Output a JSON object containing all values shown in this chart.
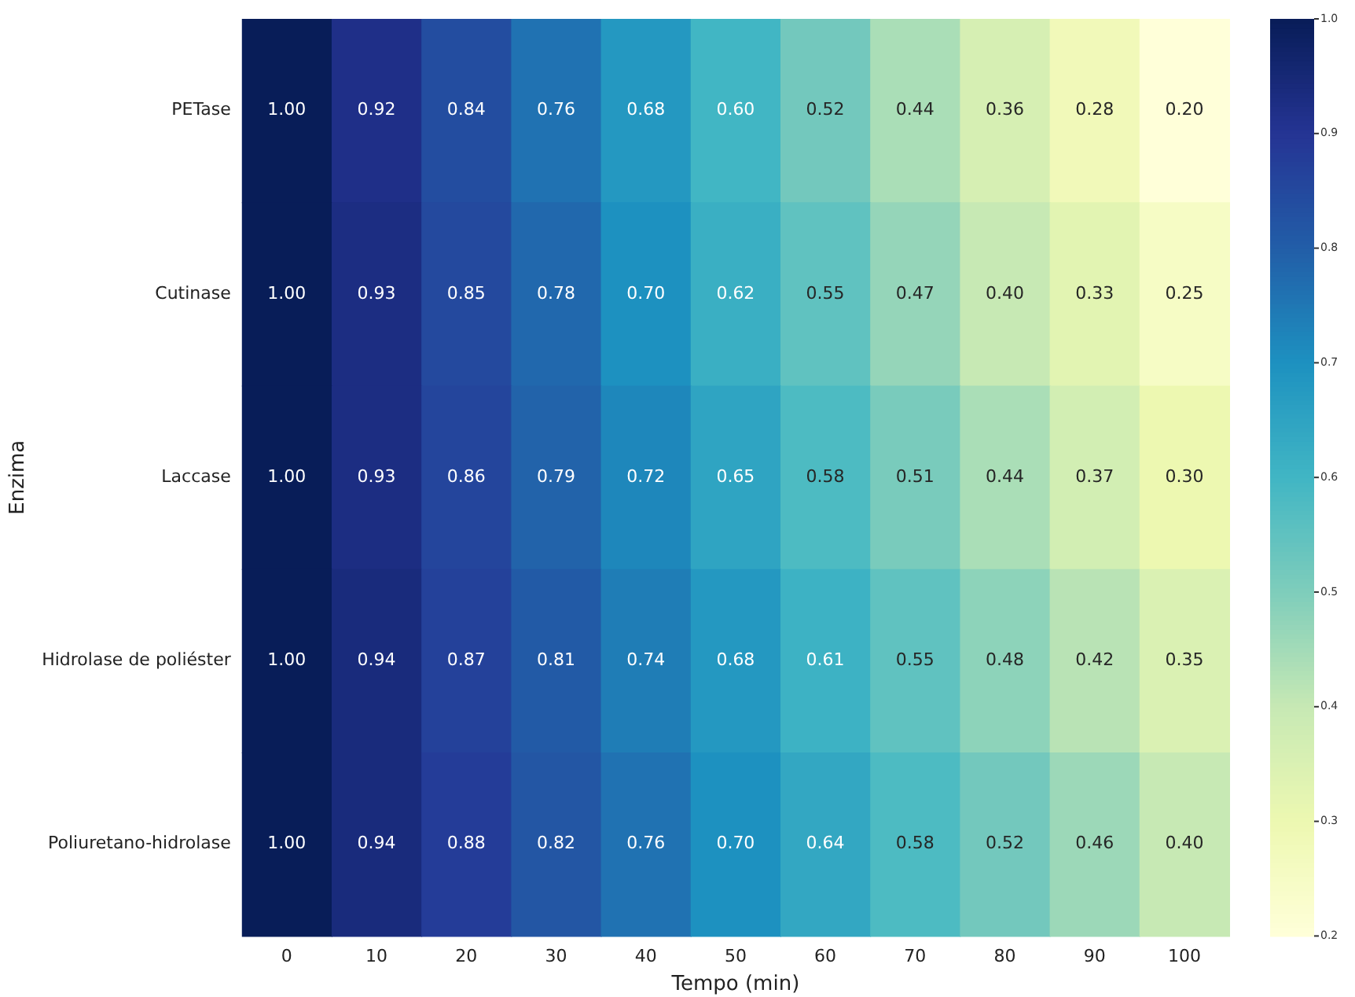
{
  "chart_data": {
    "type": "heatmap",
    "xlabel": "Tempo (min)",
    "ylabel": "Enzima",
    "categories": [
      "0",
      "10",
      "20",
      "30",
      "40",
      "50",
      "60",
      "70",
      "80",
      "90",
      "100"
    ],
    "y_categories": [
      "PETase",
      "Cutinase",
      "Laccase",
      "Hidrolase de poliéster",
      "Poliuretano-hidrolase"
    ],
    "cells": [
      [
        1.0,
        0.92,
        0.84,
        0.76,
        0.68,
        0.6,
        0.52,
        0.44,
        0.36,
        0.28,
        0.2
      ],
      [
        1.0,
        0.93,
        0.85,
        0.78,
        0.7,
        0.62,
        0.55,
        0.47,
        0.4,
        0.33,
        0.25
      ],
      [
        1.0,
        0.93,
        0.86,
        0.79,
        0.72,
        0.65,
        0.58,
        0.51,
        0.44,
        0.37,
        0.3
      ],
      [
        1.0,
        0.94,
        0.87,
        0.81,
        0.74,
        0.68,
        0.61,
        0.55,
        0.48,
        0.42,
        0.35
      ],
      [
        1.0,
        0.94,
        0.88,
        0.82,
        0.76,
        0.7,
        0.64,
        0.58,
        0.52,
        0.46,
        0.4
      ]
    ],
    "cell_labels": [
      [
        "1.00",
        "0.92",
        "0.84",
        "0.76",
        "0.68",
        "0.60",
        "0.52",
        "0.44",
        "0.36",
        "0.28",
        "0.20"
      ],
      [
        "1.00",
        "0.93",
        "0.85",
        "0.78",
        "0.70",
        "0.62",
        "0.55",
        "0.47",
        "0.40",
        "0.33",
        "0.25"
      ],
      [
        "1.00",
        "0.93",
        "0.86",
        "0.79",
        "0.72",
        "0.65",
        "0.58",
        "0.51",
        "0.44",
        "0.37",
        "0.30"
      ],
      [
        "1.00",
        "0.94",
        "0.87",
        "0.81",
        "0.74",
        "0.68",
        "0.61",
        "0.55",
        "0.48",
        "0.42",
        "0.35"
      ],
      [
        "1.00",
        "0.94",
        "0.88",
        "0.82",
        "0.76",
        "0.70",
        "0.64",
        "0.58",
        "0.52",
        "0.46",
        "0.40"
      ]
    ],
    "clim": [
      0.2,
      1.0
    ],
    "cticks": [
      0.2,
      0.3,
      0.4,
      0.5,
      0.6,
      0.7,
      0.8,
      0.9,
      {
        "value": 1.0,
        "label": "1.0"
      }
    ],
    "data_labels": true,
    "grid": false
  }
}
